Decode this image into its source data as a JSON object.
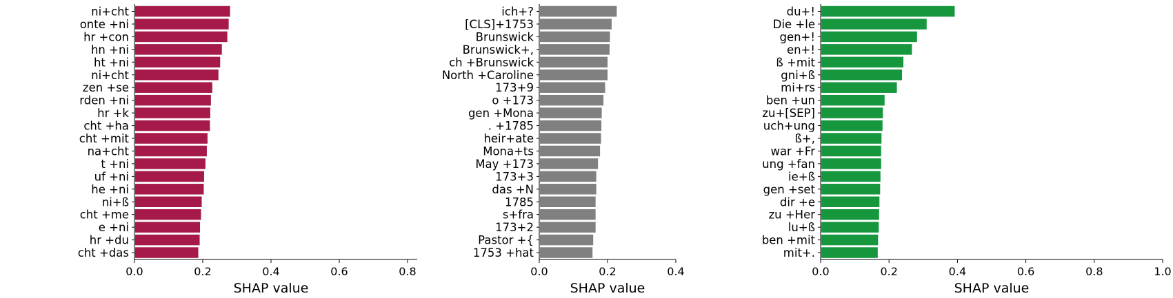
{
  "chart_data": [
    {
      "type": "bar",
      "orientation": "horizontal",
      "color": "#a51a4a",
      "xlabel": "SHAP value",
      "xlim": [
        0.0,
        0.8
      ],
      "xticks": [
        "0.0",
        "0.2",
        "0.4",
        "0.6",
        "0.8"
      ],
      "categories": [
        "ni+cht",
        "onte +ni",
        "hr +con",
        "hn +ni",
        "ht +ni",
        "ni+cht",
        "zen +se",
        "rden +ni",
        "hr +k",
        "cht +ha",
        "cht +mit",
        "na+cht",
        "t +ni",
        "uf +ni",
        "he +ni",
        "ni+ß",
        "cht +me",
        "e +ni",
        "hr +du",
        "cht +das"
      ],
      "values": [
        0.28,
        0.276,
        0.272,
        0.256,
        0.251,
        0.246,
        0.228,
        0.224,
        0.222,
        0.221,
        0.214,
        0.212,
        0.208,
        0.204,
        0.203,
        0.197,
        0.195,
        0.192,
        0.191,
        0.187
      ]
    },
    {
      "type": "bar",
      "orientation": "horizontal",
      "color": "#808080",
      "xlabel": "SHAP value",
      "xlim": [
        0.0,
        0.4
      ],
      "xticks": [
        "0.0",
        "0.2",
        "0.4"
      ],
      "categories": [
        "ich+?",
        "[CLS]+1753",
        "Brunswick",
        "Brunswick+,",
        "ch +Brunswick",
        "North +Caroline",
        "173+9",
        "o +173",
        "gen +Mona",
        ". +1785",
        "heir+ate",
        "Mona+ts",
        "May +173",
        "173+3",
        "das +N",
        "1785",
        "s+fra",
        "173+2",
        "Pastor +{",
        "1753 +hat"
      ],
      "values": [
        0.227,
        0.212,
        0.207,
        0.206,
        0.2,
        0.2,
        0.193,
        0.188,
        0.183,
        0.182,
        0.181,
        0.178,
        0.172,
        0.167,
        0.167,
        0.165,
        0.165,
        0.165,
        0.158,
        0.156
      ]
    },
    {
      "type": "bar",
      "orientation": "horizontal",
      "color": "#16973e",
      "xlabel": "SHAP value",
      "xlim": [
        0.0,
        1.0
      ],
      "xticks": [
        "0.0",
        "0.2",
        "0.4",
        "0.6",
        "0.8",
        "1.0"
      ],
      "categories": [
        "du+!",
        "Die +le",
        "gen+!",
        "en+!",
        "ß +mit",
        "gni+ß",
        "mi+rs",
        "ben +un",
        "zu+[SEP]",
        "uch+ung",
        "ß+,",
        "war +Fr",
        "ung +fan",
        "ie+ß",
        "gen +set",
        "dir +e",
        "zu +Her",
        "lu+ß",
        "ben +mit",
        "mit+."
      ],
      "values": [
        0.392,
        0.31,
        0.282,
        0.267,
        0.242,
        0.238,
        0.223,
        0.187,
        0.182,
        0.181,
        0.178,
        0.177,
        0.177,
        0.175,
        0.174,
        0.172,
        0.171,
        0.17,
        0.168,
        0.167
      ]
    }
  ]
}
